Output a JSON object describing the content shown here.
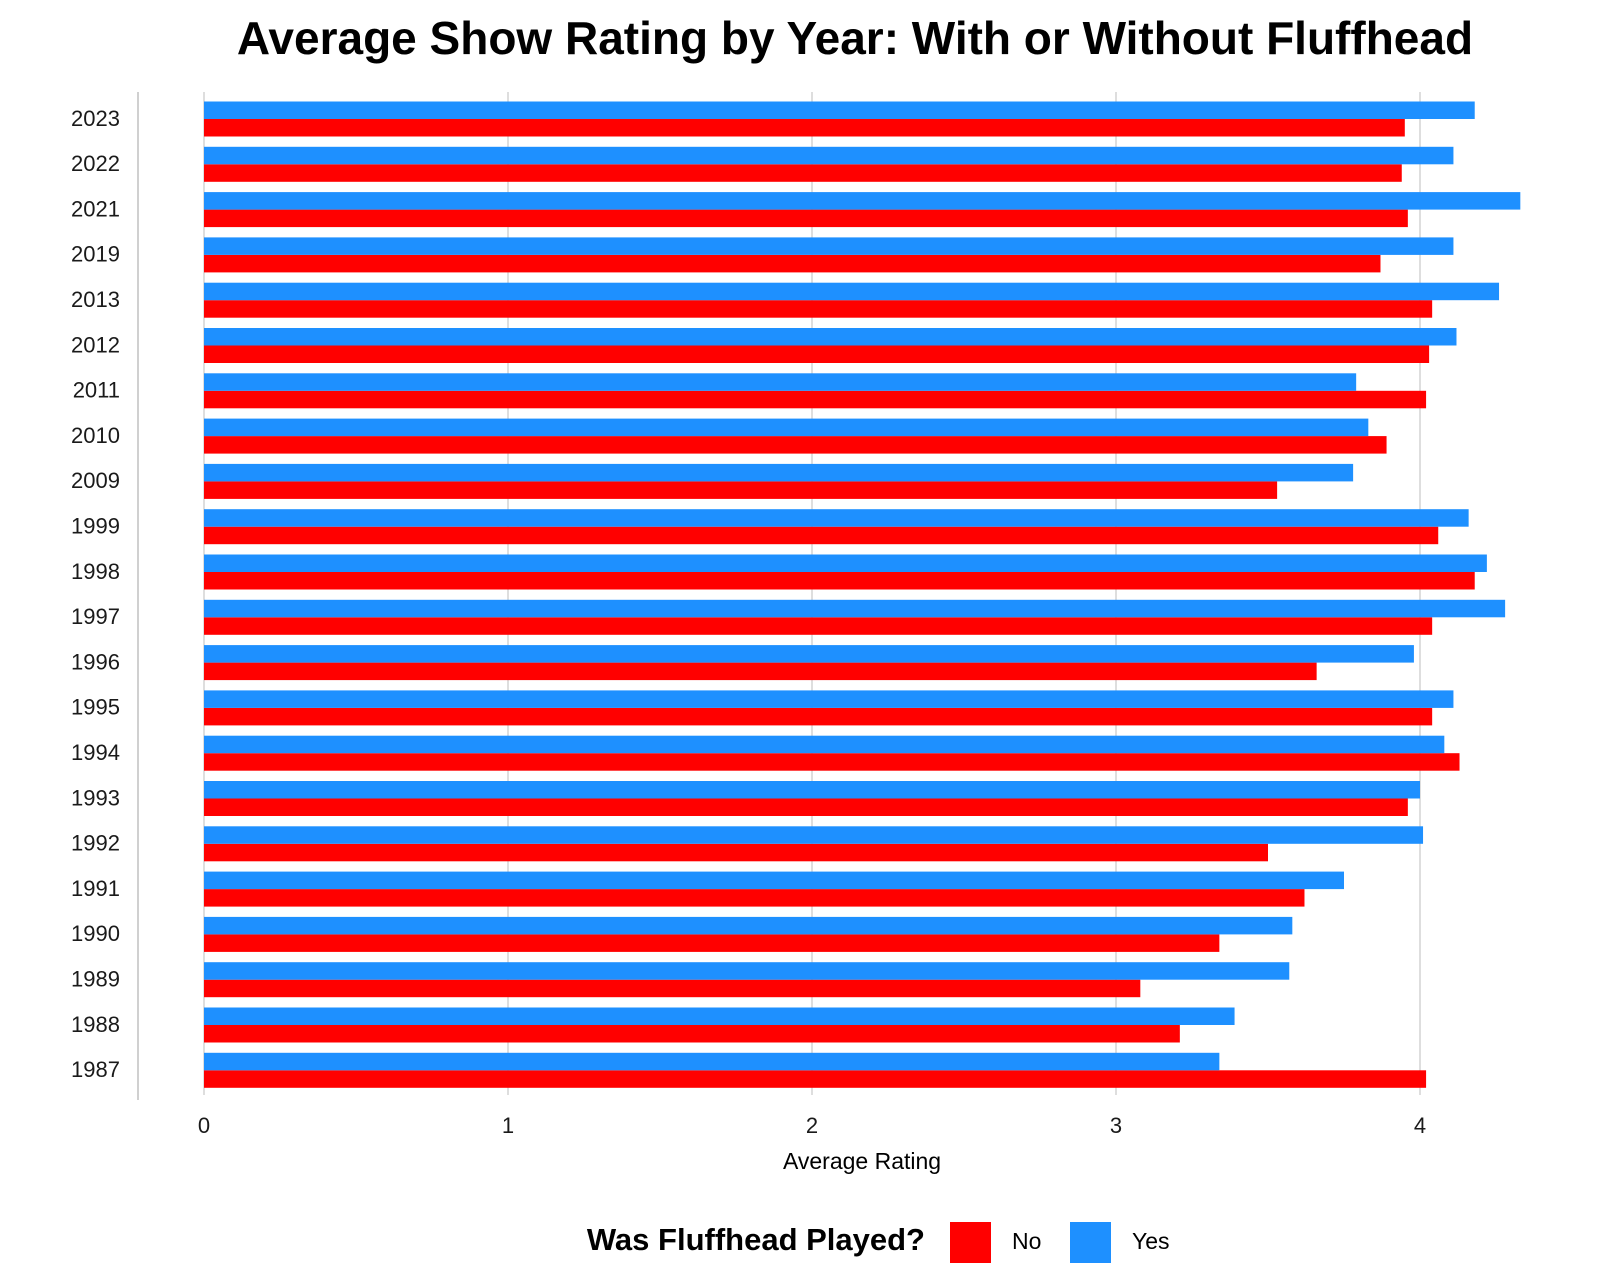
{
  "chart_data": {
    "type": "bar",
    "orientation": "horizontal",
    "title": "Average Show Rating by Year: With or Without Fluffhead",
    "x_label": "Average Rating",
    "legend_title": "Was Fluffhead Played?",
    "categories": [
      "2023",
      "2022",
      "2021",
      "2019",
      "2013",
      "2012",
      "2011",
      "2010",
      "2009",
      "1999",
      "1998",
      "1997",
      "1996",
      "1995",
      "1994",
      "1993",
      "1992",
      "1991",
      "1990",
      "1989",
      "1988",
      "1987"
    ],
    "series": [
      {
        "name": "No",
        "color": "#ff0000",
        "values": [
          3.95,
          3.94,
          3.96,
          3.87,
          4.04,
          4.03,
          4.02,
          3.89,
          3.53,
          4.06,
          4.18,
          4.04,
          3.66,
          4.04,
          4.13,
          3.96,
          3.5,
          3.62,
          3.34,
          3.08,
          3.21,
          4.02
        ]
      },
      {
        "name": "Yes",
        "color": "#1e90ff",
        "values": [
          4.18,
          4.11,
          4.33,
          4.11,
          4.26,
          4.12,
          3.79,
          3.83,
          3.78,
          4.16,
          4.22,
          4.28,
          3.98,
          4.11,
          4.08,
          4.0,
          4.01,
          3.75,
          3.58,
          3.57,
          3.39,
          3.34
        ]
      }
    ],
    "xlim": [
      0,
      4.35
    ],
    "xticks": [
      0,
      1,
      2,
      3,
      4
    ],
    "grid": true,
    "legend": "bottom"
  }
}
